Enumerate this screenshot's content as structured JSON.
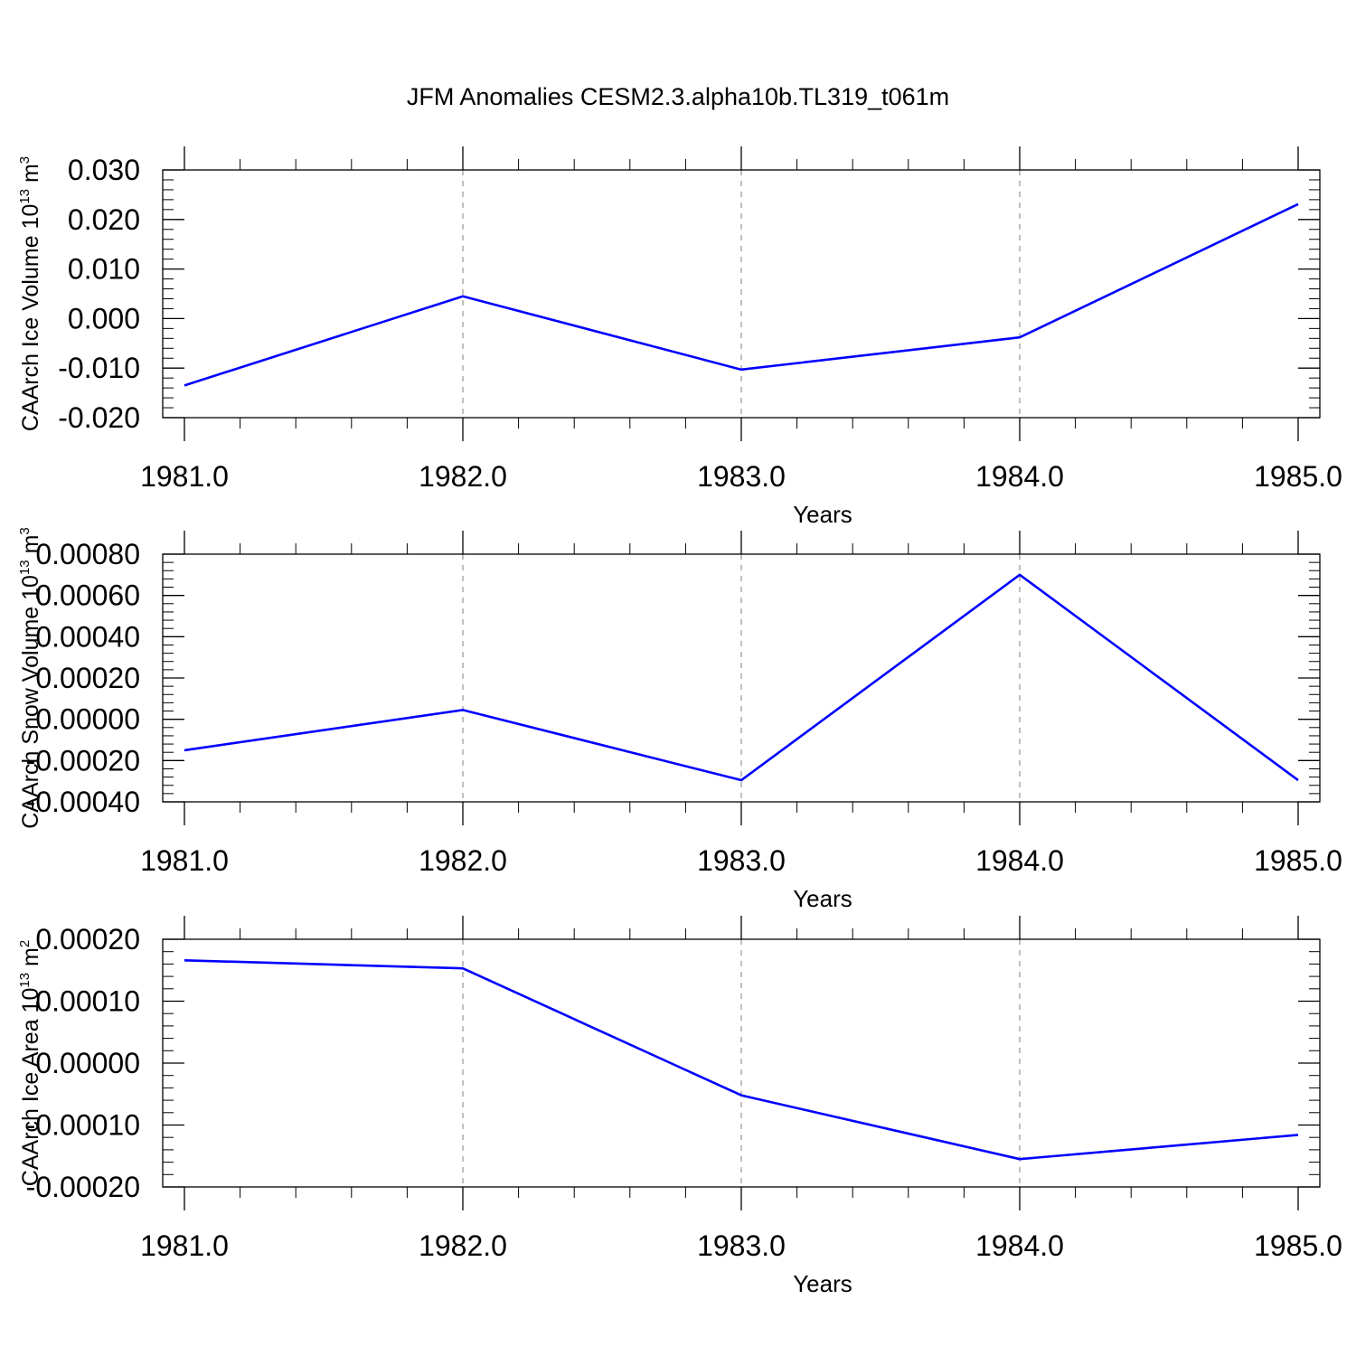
{
  "title": "JFM Anomalies CESM2.3.alpha10b.TL319_t061m",
  "colors": {
    "line": "#0000ff",
    "axis": "#000000",
    "grid": "#7f7f7f"
  },
  "chart_data": [
    {
      "type": "line",
      "ylabel_main": "CAArch Ice Volume 10",
      "ylabel_exp": "13",
      "ylabel_unit": " m",
      "ylabel_unit_exp": "3",
      "xlabel": "Years",
      "xlim": [
        1981.0,
        1985.0
      ],
      "ylim": [
        -0.02,
        0.03
      ],
      "x_ticks": [
        "1981.0",
        "1982.0",
        "1983.0",
        "1984.0",
        "1985.0"
      ],
      "y_ticks": [
        "0.030",
        "0.020",
        "0.010",
        "0.000",
        "-0.010",
        "-0.020"
      ],
      "y_tick_values": [
        0.03,
        0.02,
        0.01,
        0.0,
        -0.01,
        -0.02
      ],
      "x": [
        1981,
        1982,
        1983,
        1984,
        1985
      ],
      "values": [
        -0.0135,
        0.0045,
        -0.0103,
        -0.0038,
        0.0231
      ],
      "grid": "vertical-dashed"
    },
    {
      "type": "line",
      "ylabel_main": "CAArch Snow Volume 10",
      "ylabel_exp": "13",
      "ylabel_unit": " m",
      "ylabel_unit_exp": "3",
      "xlabel": "Years",
      "xlim": [
        1981.0,
        1985.0
      ],
      "ylim": [
        -0.0004,
        0.0008
      ],
      "x_ticks": [
        "1981.0",
        "1982.0",
        "1983.0",
        "1984.0",
        "1985.0"
      ],
      "y_ticks": [
        "0.00080",
        "0.00060",
        "0.00040",
        "0.00020",
        "0.00000",
        "-0.00020",
        "-0.00040"
      ],
      "y_tick_values": [
        0.0008,
        0.0006,
        0.0004,
        0.0002,
        0.0,
        -0.0002,
        -0.0004
      ],
      "x": [
        1981,
        1982,
        1983,
        1984,
        1985
      ],
      "values": [
        -0.00015,
        4.5e-05,
        -0.000295,
        0.0007,
        -0.000295
      ],
      "grid": "vertical-dashed"
    },
    {
      "type": "line",
      "ylabel_main": "CAArch Ice Area 10",
      "ylabel_exp": "13",
      "ylabel_unit": " m",
      "ylabel_unit_exp": "2",
      "xlabel": "Years",
      "xlim": [
        1981.0,
        1985.0
      ],
      "ylim": [
        -0.0002,
        0.0002
      ],
      "x_ticks": [
        "1981.0",
        "1982.0",
        "1983.0",
        "1984.0",
        "1985.0"
      ],
      "y_ticks": [
        "0.00020",
        "0.00010",
        "0.00000",
        "-0.00010",
        "-0.00020"
      ],
      "y_tick_values": [
        0.0002,
        0.0001,
        0.0,
        -0.0001,
        -0.0002
      ],
      "x": [
        1981,
        1982,
        1983,
        1984,
        1985
      ],
      "values": [
        0.000166,
        0.000153,
        -5.2e-05,
        -0.000155,
        -0.000116
      ],
      "grid": "vertical-dashed"
    }
  ]
}
